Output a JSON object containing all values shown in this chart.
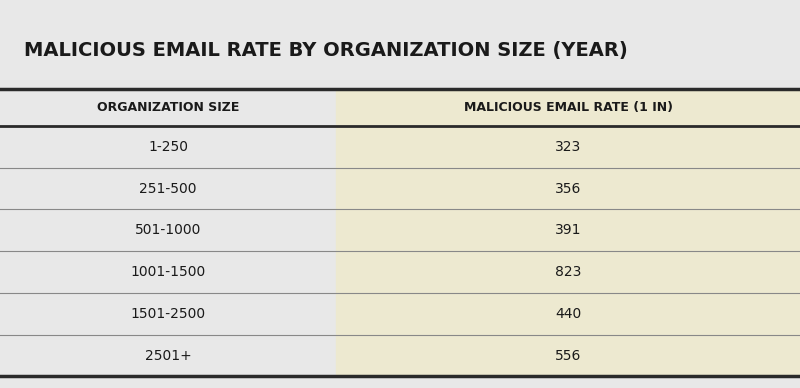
{
  "title": "MALICIOUS EMAIL RATE BY ORGANIZATION SIZE (YEAR)",
  "col1_header": "ORGANIZATION SIZE",
  "col2_header": "MALICIOUS EMAIL RATE (1 IN)",
  "rows": [
    [
      "1-250",
      "323"
    ],
    [
      "251-500",
      "356"
    ],
    [
      "501-1000",
      "391"
    ],
    [
      "1001-1500",
      "823"
    ],
    [
      "1501-2500",
      "440"
    ],
    [
      "2501+",
      "556"
    ]
  ],
  "bg_color": "#e8e8e8",
  "col2_bg_color": "#ede9d0",
  "title_color": "#1a1a1a",
  "header_text_color": "#1a1a1a",
  "cell_text_color": "#1a1a1a",
  "separator_color": "#888888",
  "thick_line_color": "#2a2a2a",
  "title_fontsize": 14,
  "header_fontsize": 9,
  "cell_fontsize": 10,
  "col_split": 0.42
}
